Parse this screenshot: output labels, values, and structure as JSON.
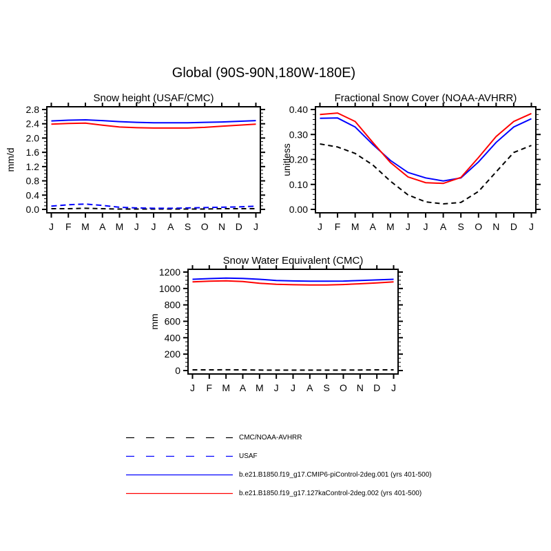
{
  "page": {
    "title": "Global (90S-90N,180W-180E)"
  },
  "chart_data": [
    {
      "type": "line",
      "title": "Snow height (USAF/CMC)",
      "ylabel": "mm/d",
      "xlabel": "",
      "categories": [
        "J",
        "F",
        "M",
        "A",
        "M",
        "J",
        "J",
        "A",
        "S",
        "O",
        "N",
        "D",
        "J"
      ],
      "ylim": [
        0.0,
        2.8
      ],
      "ytick_step": 0.4,
      "yminor_step": 0.1,
      "ydecimals": 1,
      "grid": false,
      "series": [
        {
          "name": "CMC/NOAA-AVHRR",
          "color": "#000000",
          "style": "dashed",
          "values": [
            0.02,
            0.02,
            0.03,
            0.02,
            0.01,
            0.01,
            0.01,
            0.01,
            0.01,
            0.01,
            0.02,
            0.02,
            0.02
          ]
        },
        {
          "name": "USAF",
          "color": "#0000ff",
          "style": "dashed",
          "values": [
            0.09,
            0.13,
            0.15,
            0.11,
            0.06,
            0.04,
            0.03,
            0.03,
            0.04,
            0.05,
            0.06,
            0.07,
            0.09
          ]
        },
        {
          "name": "b.e21.B1850.f19_g17.CMIP6-piControl-2deg.001 (yrs 401-500)",
          "color": "#0000ff",
          "style": "solid",
          "values": [
            2.48,
            2.5,
            2.51,
            2.49,
            2.46,
            2.44,
            2.43,
            2.43,
            2.43,
            2.44,
            2.45,
            2.47,
            2.49
          ]
        },
        {
          "name": "b.e21.B1850.f19_g17.127kaControl-2deg.002 (yrs 401-500)",
          "color": "#ff0000",
          "style": "solid",
          "values": [
            2.39,
            2.41,
            2.42,
            2.36,
            2.31,
            2.29,
            2.28,
            2.28,
            2.28,
            2.3,
            2.33,
            2.36,
            2.39
          ]
        }
      ]
    },
    {
      "type": "line",
      "title": "Fractional Snow Cover (NOAA-AVHRR)",
      "ylabel": "unitless",
      "xlabel": "",
      "categories": [
        "J",
        "F",
        "M",
        "A",
        "M",
        "J",
        "J",
        "A",
        "S",
        "O",
        "N",
        "D",
        "J"
      ],
      "ylim": [
        0.0,
        0.4
      ],
      "ytick_step": 0.1,
      "yminor_step": 0.02,
      "ydecimals": 2,
      "grid": false,
      "series": [
        {
          "name": "CMC/NOAA-AVHRR",
          "color": "#000000",
          "style": "dashed",
          "values": [
            0.262,
            0.25,
            0.224,
            0.178,
            0.113,
            0.058,
            0.03,
            0.022,
            0.028,
            0.072,
            0.15,
            0.228,
            0.256
          ]
        },
        {
          "name": "b.e21.B1850.f19_g17.CMIP6-piControl-2deg.001 (yrs 401-500)",
          "color": "#0000ff",
          "style": "solid",
          "values": [
            0.365,
            0.366,
            0.33,
            0.26,
            0.196,
            0.148,
            0.126,
            0.114,
            0.126,
            0.19,
            0.268,
            0.33,
            0.363
          ]
        },
        {
          "name": "b.e21.B1850.f19_g17.127kaControl-2deg.002 (yrs 401-500)",
          "color": "#ff0000",
          "style": "solid",
          "values": [
            0.38,
            0.386,
            0.352,
            0.268,
            0.188,
            0.13,
            0.107,
            0.104,
            0.128,
            0.208,
            0.292,
            0.352,
            0.384
          ]
        }
      ]
    },
    {
      "type": "line",
      "title": "Snow Water Equivalent (CMC)",
      "ylabel": "mm",
      "xlabel": "",
      "categories": [
        "J",
        "F",
        "M",
        "A",
        "M",
        "J",
        "J",
        "A",
        "S",
        "O",
        "N",
        "D",
        "J"
      ],
      "ylim": [
        0,
        1200
      ],
      "ytick_step": 200,
      "yminor_step": 50,
      "ydecimals": 0,
      "grid": false,
      "series": [
        {
          "name": "CMC/NOAA-AVHRR",
          "color": "#000000",
          "style": "dashed",
          "values": [
            8,
            8,
            9,
            8,
            6,
            5,
            5,
            5,
            5,
            6,
            7,
            8,
            8
          ]
        },
        {
          "name": "b.e21.B1850.f19_g17.CMIP6-piControl-2deg.001 (yrs 401-500)",
          "color": "#0000ff",
          "style": "solid",
          "values": [
            1112,
            1120,
            1126,
            1123,
            1112,
            1098,
            1092,
            1089,
            1088,
            1090,
            1097,
            1104,
            1112
          ]
        },
        {
          "name": "b.e21.B1850.f19_g17.127kaControl-2deg.002 (yrs 401-500)",
          "color": "#ff0000",
          "style": "solid",
          "values": [
            1080,
            1088,
            1093,
            1084,
            1063,
            1051,
            1046,
            1043,
            1043,
            1048,
            1057,
            1068,
            1080
          ]
        }
      ]
    }
  ],
  "legend": {
    "items": [
      {
        "label": "CMC/NOAA-AVHRR",
        "color": "#000000",
        "style": "dashed"
      },
      {
        "label": "USAF",
        "color": "#0000ff",
        "style": "dashed"
      },
      {
        "label": "b.e21.B1850.f19_g17.CMIP6-piControl-2deg.001 (yrs 401-500)",
        "color": "#0000ff",
        "style": "solid"
      },
      {
        "label": "b.e21.B1850.f19_g17.127kaControl-2deg.002 (yrs 401-500)",
        "color": "#ff0000",
        "style": "solid"
      }
    ]
  },
  "colors": {
    "axis": "#000000",
    "background": "#ffffff",
    "obs": "#000000",
    "model1": "#0000ff",
    "model2": "#ff0000"
  }
}
